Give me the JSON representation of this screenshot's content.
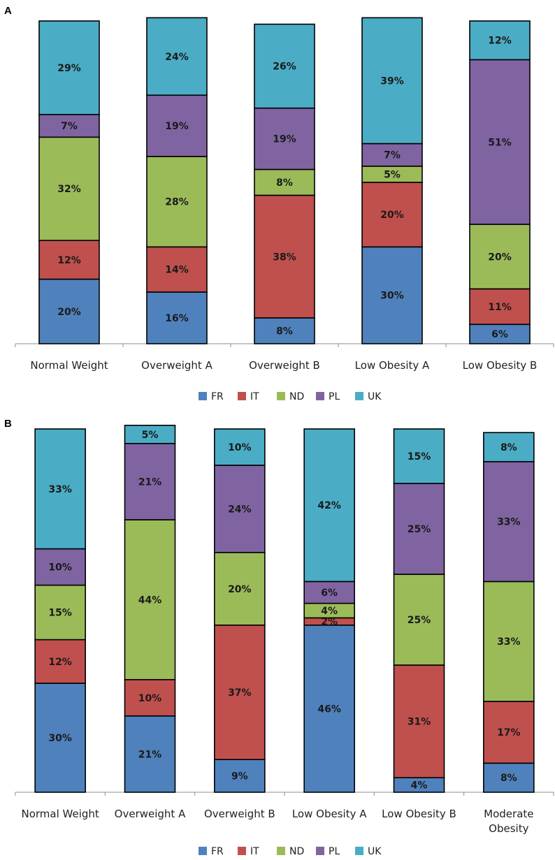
{
  "chart_data": [
    {
      "type": "bar",
      "stacked": true,
      "panel_label": "A",
      "categories": [
        "Normal Weight",
        "Overweight A",
        "Overweight B",
        "Low Obesity A",
        "Low Obesity B"
      ],
      "series": [
        {
          "name": "FR",
          "color": "#4F81BD",
          "values": [
            20,
            16,
            8,
            30,
            6
          ],
          "labels": [
            "20%",
            "16%",
            "8%",
            "30%",
            "6%"
          ]
        },
        {
          "name": "IT",
          "color": "#C0504D",
          "values": [
            12,
            14,
            38,
            20,
            11
          ],
          "labels": [
            "12%",
            "14%",
            "38%",
            "20%",
            "11%"
          ]
        },
        {
          "name": "ND",
          "color": "#9BBB59",
          "values": [
            32,
            28,
            8,
            5,
            20
          ],
          "labels": [
            "32%",
            "28%",
            "8%",
            "5%",
            "20%"
          ]
        },
        {
          "name": "PL",
          "color": "#8064A2",
          "values": [
            7,
            19,
            19,
            7,
            51
          ],
          "labels": [
            "7%",
            "19%",
            "19%",
            "7%",
            "51%"
          ]
        },
        {
          "name": "UK",
          "color": "#4BACC6",
          "values": [
            29,
            24,
            26,
            39,
            12
          ],
          "labels": [
            "29%",
            "24%",
            "26%",
            "39%",
            "12%"
          ]
        }
      ],
      "ylim": [
        0,
        100
      ],
      "legend": "bottom"
    },
    {
      "type": "bar",
      "stacked": true,
      "panel_label": "B",
      "categories": [
        "Normal Weight",
        "Overweight A",
        "Overweight B",
        "Low Obesity A",
        "Low Obesity B",
        "Moderate Obesity"
      ],
      "series": [
        {
          "name": "FR",
          "color": "#4F81BD",
          "values": [
            30,
            21,
            9,
            46,
            4,
            8
          ],
          "labels": [
            "30%",
            "21%",
            "9%",
            "46%",
            "4%",
            "8%"
          ]
        },
        {
          "name": "IT",
          "color": "#C0504D",
          "values": [
            12,
            10,
            37,
            2,
            31,
            17
          ],
          "labels": [
            "12%",
            "10%",
            "37%",
            "2%",
            "31%",
            "17%"
          ]
        },
        {
          "name": "ND",
          "color": "#9BBB59",
          "values": [
            15,
            44,
            20,
            4,
            25,
            33
          ],
          "labels": [
            "15%",
            "44%",
            "20%",
            "4%",
            "25%",
            "33%"
          ]
        },
        {
          "name": "PL",
          "color": "#8064A2",
          "values": [
            10,
            21,
            24,
            6,
            25,
            33
          ],
          "labels": [
            "10%",
            "21%",
            "24%",
            "6%",
            "25%",
            "33%"
          ]
        },
        {
          "name": "UK",
          "color": "#4BACC6",
          "values": [
            33,
            5,
            10,
            42,
            15,
            8
          ],
          "labels": [
            "33%",
            "5%",
            "10%",
            "42%",
            "15%",
            "8%"
          ]
        }
      ],
      "ylim": [
        0,
        100
      ],
      "legend": "bottom"
    }
  ]
}
